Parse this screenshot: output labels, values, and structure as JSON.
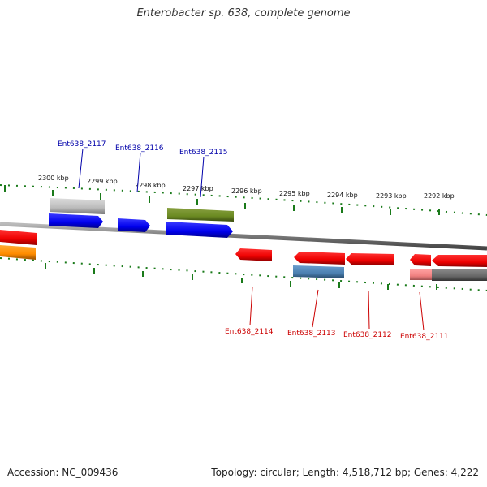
{
  "title": "Enterobacter sp. 638, complete genome",
  "footer": {
    "accession": "Accession: NC_009436",
    "summary": "Topology: circular; Length: 4,518,712 bp; Genes: 4,222"
  },
  "colors": {
    "backbone": "#777777",
    "tick": "#1a7a1a",
    "label_top": "#0000aa",
    "label_bottom": "#cc0000"
  },
  "scale_labels": [
    "2300 kbp",
    "2299 kbp",
    "2298 kbp",
    "2297 kbp",
    "2296 kbp",
    "2295 kbp",
    "2294 kbp",
    "2293 kbp",
    "2292 kbp"
  ],
  "genes_top": [
    {
      "name": "Ent638_2117",
      "color": "#0a0aee",
      "strand": "+"
    },
    {
      "name": "Ent638_2116",
      "color": "#0a0aee",
      "strand": "+"
    },
    {
      "name": "Ent638_2115",
      "color": "#0a0aee",
      "strand": "+"
    }
  ],
  "genes_bottom": [
    {
      "name": "Ent638_2114",
      "color": "#ee0000",
      "strand": "-"
    },
    {
      "name": "Ent638_2113",
      "color": "#ee0000",
      "strand": "-"
    },
    {
      "name": "Ent638_2112",
      "color": "#ee0000",
      "strand": "-"
    },
    {
      "name": "Ent638_2111",
      "color": "#ee0000",
      "strand": "-"
    }
  ]
}
